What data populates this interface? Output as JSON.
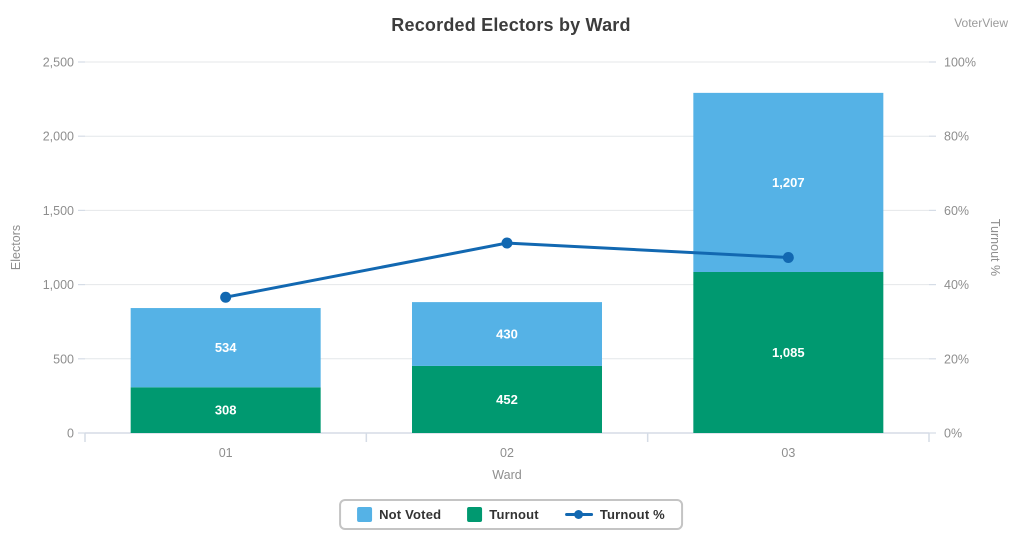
{
  "chart": {
    "title": "Recorded Electors by Ward",
    "watermark": "VoterView",
    "legend": [
      {
        "label": "Not Voted",
        "icon": "swatch",
        "color": "#55B2E6"
      },
      {
        "label": "Turnout",
        "icon": "swatch",
        "color": "#009970"
      },
      {
        "label": "Turnout %",
        "icon": "line-marker",
        "color": "#1268B1"
      }
    ]
  },
  "chart_data": {
    "type": "bar",
    "subtype": "stacked-bar-with-line",
    "title": "Recorded Electors by Ward",
    "categories": [
      "01",
      "02",
      "03"
    ],
    "xlabel": "Ward",
    "grid": "horizontal",
    "legend_position": "bottom",
    "axes": {
      "left": {
        "label": "Electors",
        "min": 0,
        "max": 2500,
        "tick_step": 500,
        "tick_labels": [
          "0",
          "500",
          "1,000",
          "1,500",
          "2,000",
          "2,500"
        ]
      },
      "right": {
        "label": "Turnout %",
        "min": 0,
        "max": 100,
        "tick_step": 20,
        "tick_labels": [
          "0%",
          "20%",
          "40%",
          "60%",
          "80%",
          "100%"
        ]
      }
    },
    "series": [
      {
        "name": "Turnout",
        "kind": "bar",
        "axis": "left",
        "stack": "electors",
        "color": "#009970",
        "values": [
          308,
          452,
          1085
        ],
        "value_labels": [
          "308",
          "452",
          "1,085"
        ]
      },
      {
        "name": "Not Voted",
        "kind": "bar",
        "axis": "left",
        "stack": "electors",
        "color": "#55B2E6",
        "values": [
          534,
          430,
          1207
        ],
        "value_labels": [
          "534",
          "430",
          "1,207"
        ]
      },
      {
        "name": "Turnout %",
        "kind": "line",
        "axis": "right",
        "color": "#1268B1",
        "values": [
          36.6,
          51.2,
          47.3
        ],
        "unit": "%"
      }
    ],
    "totals": [
      842,
      882,
      2292
    ]
  },
  "colors": {
    "grid": "#E4E7EA",
    "axis_line": "#D5DCE6",
    "tick_text": "#8E8E8E",
    "axis_title": "#8E8E8E",
    "bar_label": "#FFFFFF",
    "title_text": "#3C3C3C"
  }
}
